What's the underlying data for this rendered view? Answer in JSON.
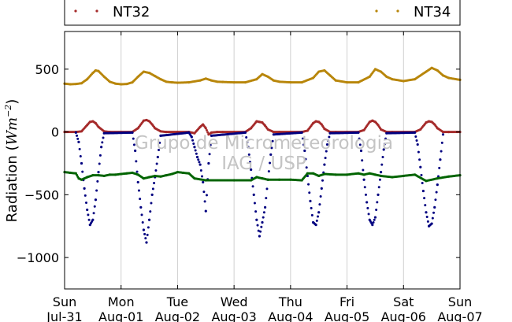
{
  "chart_data": {
    "type": "scatter",
    "ylabel_text": "Radiation (",
    "ylabel_unit_base": "Wm",
    "ylabel_unit_exp": "−2",
    "ylabel_close": ")",
    "ylim": [
      -1250,
      800
    ],
    "xlim": [
      0,
      7
    ],
    "y_ticks": [
      500,
      0,
      -500,
      -1000
    ],
    "y_tick_labels": [
      "500",
      "0",
      "−500",
      "−1000"
    ],
    "x_ticks": [
      {
        "day": "Sun",
        "date": "Jul-31"
      },
      {
        "day": "Mon",
        "date": "Aug-01"
      },
      {
        "day": "Tue",
        "date": "Aug-02"
      },
      {
        "day": "Wed",
        "date": "Aug-03"
      },
      {
        "day": "Thu",
        "date": "Aug-04"
      },
      {
        "day": "Fri",
        "date": "Aug-05"
      },
      {
        "day": "Sat",
        "date": "Aug-06"
      },
      {
        "day": "Sun",
        "date": "Aug-07"
      }
    ],
    "grid": "vertical",
    "legend": [
      {
        "name": "NT32",
        "color": "#a52a2a"
      },
      {
        "name": "NT34",
        "color": "#b8860b"
      }
    ],
    "watermark": [
      "Grupo de Micrometeorologia",
      "IAG / USP"
    ],
    "series": [
      {
        "name": "NT34",
        "color": "#b8860b",
        "x": [
          0,
          0.1,
          0.2,
          0.3,
          0.4,
          0.5,
          0.55,
          0.6,
          0.7,
          0.8,
          0.9,
          1.0,
          1.1,
          1.2,
          1.3,
          1.4,
          1.5,
          1.6,
          1.7,
          1.8,
          1.9,
          2.0,
          2.2,
          2.4,
          2.5,
          2.6,
          2.7,
          2.8,
          3.0,
          3.2,
          3.4,
          3.5,
          3.6,
          3.7,
          3.8,
          4.0,
          4.2,
          4.4,
          4.5,
          4.6,
          4.7,
          4.8,
          5.0,
          5.2,
          5.4,
          5.5,
          5.6,
          5.7,
          5.8,
          6.0,
          6.2,
          6.4,
          6.5,
          6.6,
          6.7,
          6.8,
          7.0
        ],
        "y": [
          385,
          380,
          382,
          388,
          420,
          470,
          490,
          485,
          440,
          400,
          385,
          380,
          382,
          395,
          440,
          480,
          470,
          445,
          420,
          400,
          395,
          392,
          395,
          410,
          425,
          410,
          400,
          398,
          395,
          395,
          420,
          460,
          440,
          410,
          400,
          395,
          395,
          430,
          480,
          490,
          450,
          410,
          395,
          395,
          440,
          500,
          480,
          440,
          420,
          405,
          420,
          480,
          510,
          490,
          450,
          430,
          415
        ]
      },
      {
        "name": "NT32",
        "color": "#a52a2a",
        "x": [
          0,
          0.2,
          0.3,
          0.4,
          0.45,
          0.5,
          0.55,
          0.6,
          0.7,
          0.8,
          1.0,
          1.2,
          1.3,
          1.4,
          1.45,
          1.5,
          1.55,
          1.6,
          1.7,
          1.8,
          2.0,
          2.2,
          2.3,
          2.4,
          2.45,
          2.5,
          2.55,
          2.6,
          2.7,
          2.8,
          3.0,
          3.2,
          3.3,
          3.4,
          3.45,
          3.5,
          3.55,
          3.6,
          3.7,
          3.8,
          4.0,
          4.2,
          4.3,
          4.4,
          4.45,
          4.5,
          4.55,
          4.6,
          4.7,
          4.8,
          5.0,
          5.2,
          5.3,
          5.4,
          5.45,
          5.5,
          5.55,
          5.6,
          5.7,
          5.8,
          6.0,
          6.2,
          6.3,
          6.4,
          6.45,
          6.5,
          6.55,
          6.6,
          6.7,
          6.8,
          7.0
        ],
        "y": [
          0,
          0,
          5,
          55,
          80,
          85,
          70,
          40,
          5,
          0,
          0,
          0,
          30,
          90,
          95,
          85,
          60,
          30,
          5,
          0,
          0,
          0,
          -10,
          40,
          60,
          30,
          -20,
          -5,
          0,
          0,
          0,
          0,
          30,
          85,
          80,
          75,
          50,
          20,
          0,
          0,
          0,
          0,
          10,
          70,
          85,
          80,
          60,
          25,
          0,
          0,
          0,
          0,
          15,
          80,
          90,
          80,
          55,
          20,
          0,
          0,
          0,
          0,
          20,
          75,
          85,
          80,
          60,
          30,
          0,
          0,
          0
        ]
      },
      {
        "name": "",
        "color": "#000080",
        "x": [
          0.2,
          0.25,
          0.3,
          0.35,
          0.4,
          0.45,
          0.5,
          0.55,
          0.6,
          0.65,
          0.7,
          1.2,
          1.25,
          1.3,
          1.35,
          1.4,
          1.45,
          1.5,
          1.55,
          1.6,
          1.65,
          1.7,
          2.2,
          2.25,
          2.3,
          2.35,
          2.4,
          2.45,
          2.5,
          2.55,
          2.6,
          3.2,
          3.25,
          3.3,
          3.35,
          3.4,
          3.45,
          3.5,
          3.55,
          3.6,
          3.65,
          3.7,
          4.2,
          4.25,
          4.3,
          4.35,
          4.4,
          4.45,
          4.5,
          4.55,
          4.6,
          4.65,
          4.7,
          5.2,
          5.25,
          5.3,
          5.35,
          5.4,
          5.45,
          5.5,
          5.55,
          5.6,
          5.65,
          5.7,
          6.2,
          6.25,
          6.3,
          6.35,
          6.4,
          6.45,
          6.5,
          6.55,
          6.6,
          6.65,
          6.7
        ],
        "y": [
          -5,
          -80,
          -250,
          -450,
          -620,
          -740,
          -700,
          -540,
          -320,
          -120,
          -10,
          -5,
          -150,
          -400,
          -600,
          -780,
          -880,
          -700,
          -500,
          -360,
          -200,
          -30,
          -5,
          -40,
          -120,
          -200,
          -260,
          -400,
          -630,
          -250,
          -30,
          -5,
          -120,
          -300,
          -500,
          -700,
          -830,
          -720,
          -600,
          -380,
          -180,
          -20,
          -5,
          -150,
          -350,
          -550,
          -720,
          -740,
          -640,
          -450,
          -260,
          -100,
          -10,
          -5,
          -150,
          -380,
          -560,
          -700,
          -740,
          -680,
          -500,
          -320,
          -140,
          -10,
          -5,
          -100,
          -280,
          -470,
          -640,
          -750,
          -730,
          -600,
          -420,
          -220,
          -20
        ]
      },
      {
        "name": "",
        "color": "#006400",
        "x": [
          0,
          0.1,
          0.2,
          0.25,
          0.3,
          0.4,
          0.5,
          0.6,
          0.7,
          0.8,
          0.9,
          1.0,
          1.1,
          1.2,
          1.3,
          1.4,
          1.5,
          1.6,
          1.7,
          1.8,
          1.9,
          2.0,
          2.1,
          2.2,
          2.3,
          2.5,
          3.0,
          3.3,
          3.4,
          3.5,
          3.6,
          3.8,
          4.0,
          4.2,
          4.3,
          4.4,
          4.5,
          4.6,
          4.8,
          5.0,
          5.2,
          5.3,
          5.4,
          5.5,
          5.6,
          5.8,
          6.0,
          6.2,
          6.4,
          6.6,
          6.8,
          7.0
        ],
        "y": [
          -320,
          -325,
          -330,
          -370,
          -380,
          -360,
          -345,
          -345,
          -350,
          -340,
          -340,
          -335,
          -330,
          -325,
          -340,
          -370,
          -360,
          -350,
          -355,
          -345,
          -335,
          -320,
          -325,
          -330,
          -370,
          -385,
          -385,
          -385,
          -360,
          -370,
          -380,
          -380,
          -380,
          -385,
          -330,
          -330,
          -350,
          -335,
          -340,
          -340,
          -330,
          -340,
          -330,
          -340,
          -350,
          -360,
          -350,
          -340,
          -390,
          -370,
          -355,
          -345
        ]
      }
    ]
  }
}
